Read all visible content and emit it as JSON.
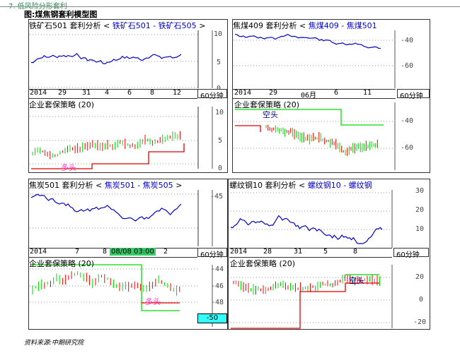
{
  "section_title": "7. 低风险分形套利",
  "figure_title": "图:煤焦钢套利模型图",
  "source": "资料来源:中期研究院",
  "timeframe": "60分钟",
  "panels": {
    "p1": {
      "title_prefix": "铁矿石501 套利分析 <",
      "title_series": "铁矿石501 - 铁矿石505",
      "title_suffix": ">",
      "y_ticks": [
        "10",
        "5",
        "0"
      ],
      "x_ticks": [
        "2014",
        "29",
        "31",
        "4",
        "6",
        "8",
        "12"
      ],
      "strategy_title": "企业套保策略 (20)",
      "strategy_y_ticks": [
        "10",
        "5",
        "0"
      ],
      "signal_label": "多头"
    },
    "p2": {
      "title_prefix": "焦煤409 套利分析 <",
      "title_series": "焦煤409 - 焦煤501",
      "y_ticks": [
        "-40",
        "-60"
      ],
      "x_ticks": [
        "2014",
        "29",
        "06月",
        "6",
        "11"
      ],
      "strategy_title": "企业套保策略 (20)",
      "strategy_y_ticks": [
        "-40",
        "-60"
      ],
      "signal_label": "空头"
    },
    "p3": {
      "title_prefix": "焦炭501 套利分析 <",
      "title_series": "焦炭501 - 焦炭505",
      "title_suffix": ">",
      "y_ticks": [
        "-45"
      ],
      "x_ticks": [
        "2014",
        "7",
        "8",
        "2"
      ],
      "time_highlight": "08/08 03:00",
      "strategy_title": "企业套保策略 (20)",
      "strategy_y_ticks": [
        "-44",
        "-46",
        "-48",
        "-50"
      ],
      "current_value": "-50",
      "signal_label": "多头"
    },
    "p4": {
      "title_prefix": "螺纹钢10 套利分析 <",
      "title_series": "螺纹钢10 - 螺纹钢",
      "y_ticks": [
        "30",
        "20",
        "10"
      ],
      "x_ticks": [
        "2014",
        "28",
        "31",
        "5",
        "8"
      ],
      "strategy_title": "企业套保策略 (20)",
      "strategy_y_ticks": [
        "20",
        "0",
        "-20"
      ],
      "signal_label": "空头"
    }
  },
  "colors": {
    "series_line": "#0000cc",
    "up_bar": "#ff0000",
    "down_bar": "#00dd00",
    "long_line": "#e00000",
    "short_line": "#00dd00",
    "highlight_cyan": "#33ffff"
  }
}
